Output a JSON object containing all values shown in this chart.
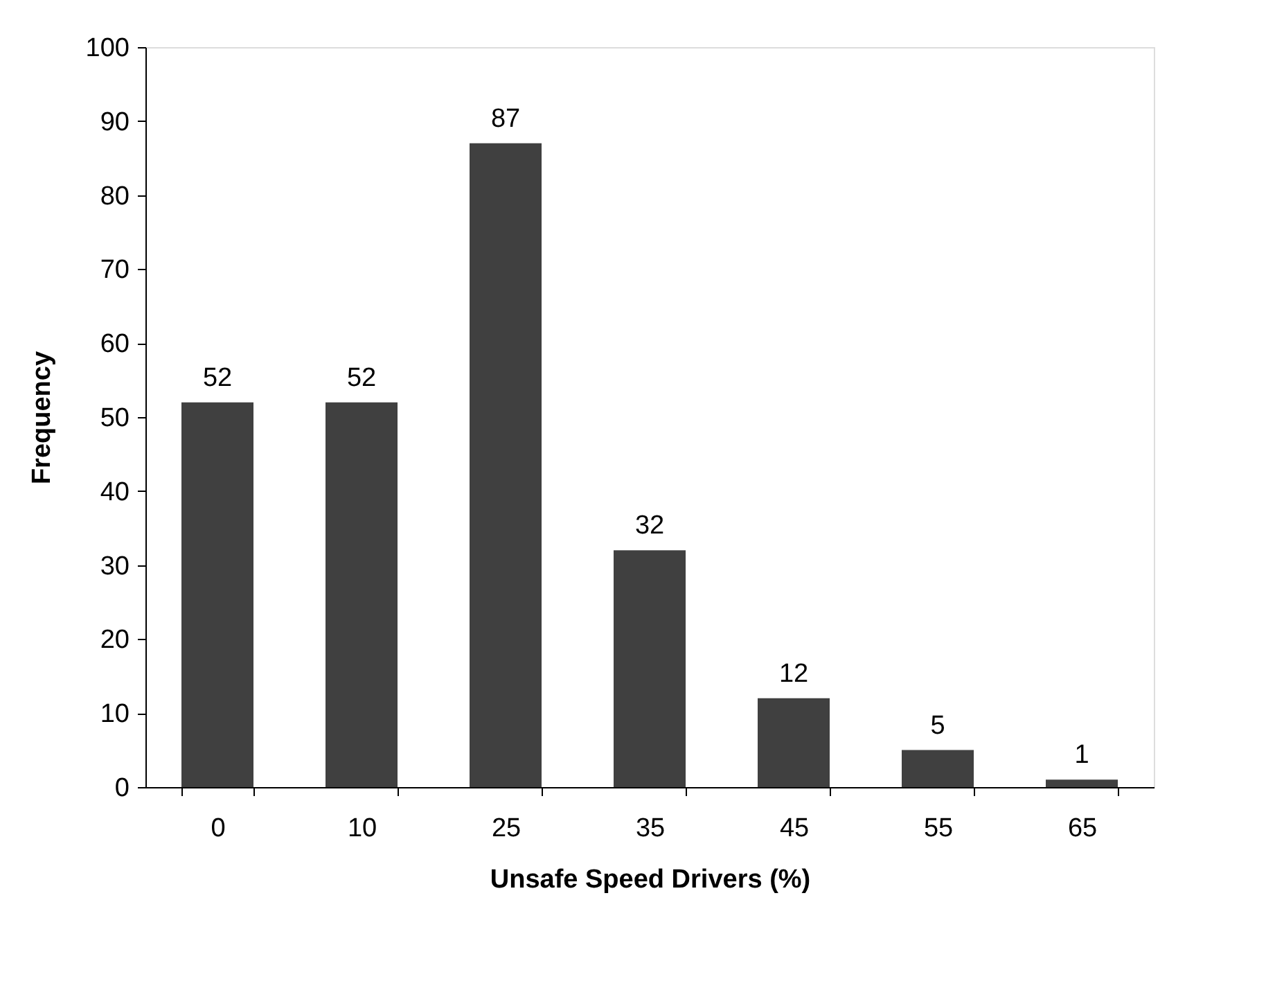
{
  "chart_data": {
    "type": "bar",
    "xlabel": "Unsafe Speed Drivers (%)",
    "ylabel": "Frequency",
    "categories": [
      "0",
      "10",
      "25",
      "35",
      "45",
      "55",
      "65"
    ],
    "values": [
      52,
      52,
      87,
      32,
      12,
      5,
      1
    ],
    "color": "#404040",
    "ylim": [
      0,
      100
    ],
    "yticks": [
      0,
      10,
      20,
      30,
      40,
      50,
      60,
      70,
      80,
      90,
      100
    ],
    "data_labels": true,
    "grid": false
  }
}
